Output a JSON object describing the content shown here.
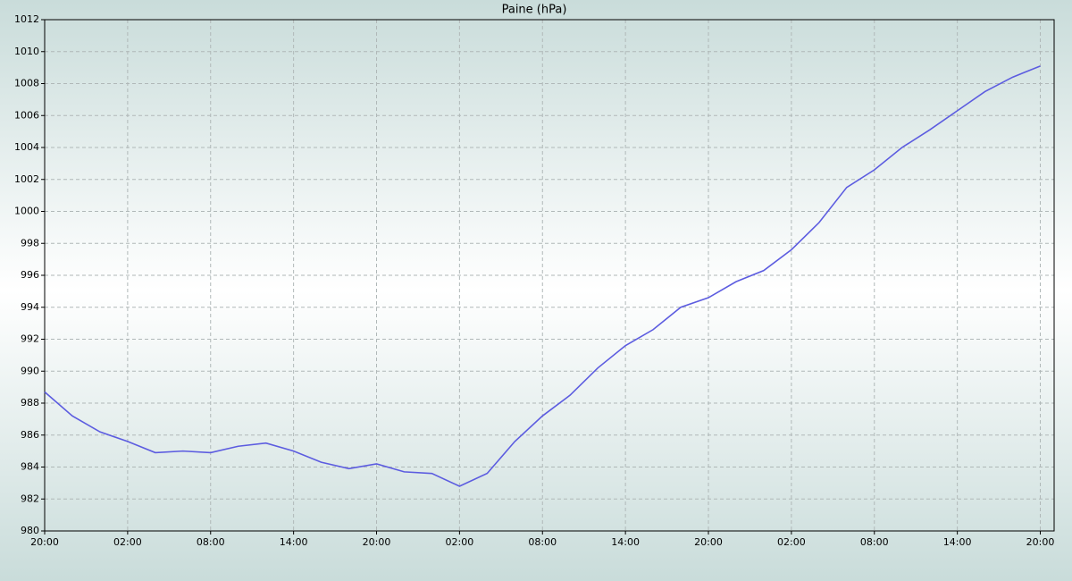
{
  "chart_data": {
    "type": "line",
    "title": "Paine (hPa)",
    "x": [
      0,
      2,
      4,
      6,
      8,
      10,
      12,
      14,
      16,
      18,
      20,
      22,
      24,
      26,
      28,
      30,
      32,
      34,
      36,
      38,
      40,
      42,
      44,
      46,
      48,
      50,
      52,
      54,
      56,
      58,
      60,
      62,
      64,
      66,
      68,
      70,
      72
    ],
    "series": [
      {
        "name": "Paine",
        "color": "#5c5ce0",
        "values": [
          988.7,
          987.2,
          986.2,
          985.6,
          984.9,
          985.0,
          984.9,
          985.3,
          985.5,
          985.0,
          984.3,
          983.9,
          984.2,
          983.7,
          983.6,
          982.8,
          983.6,
          985.6,
          987.2,
          988.5,
          990.2,
          991.6,
          992.6,
          994.0,
          994.6,
          995.6,
          996.3,
          997.6,
          999.3,
          1001.5,
          1002.6,
          1004.0,
          1005.1,
          1006.3,
          1007.5,
          1008.4,
          1009.1
        ]
      }
    ],
    "xlim": [
      0,
      73
    ],
    "xticks": [
      {
        "value": 0,
        "label": "20:00"
      },
      {
        "value": 6,
        "label": "02:00"
      },
      {
        "value": 12,
        "label": "08:00"
      },
      {
        "value": 18,
        "label": "14:00"
      },
      {
        "value": 24,
        "label": "20:00"
      },
      {
        "value": 30,
        "label": "02:00"
      },
      {
        "value": 36,
        "label": "08:00"
      },
      {
        "value": 42,
        "label": "14:00"
      },
      {
        "value": 48,
        "label": "20:00"
      },
      {
        "value": 54,
        "label": "02:00"
      },
      {
        "value": 60,
        "label": "08:00"
      },
      {
        "value": 66,
        "label": "14:00"
      },
      {
        "value": 72,
        "label": "20:00"
      }
    ],
    "ylim": [
      980,
      1012
    ],
    "yticks": [
      980,
      982,
      984,
      986,
      988,
      990,
      992,
      994,
      996,
      998,
      1000,
      1002,
      1004,
      1006,
      1008,
      1010,
      1012
    ],
    "grid": true
  }
}
